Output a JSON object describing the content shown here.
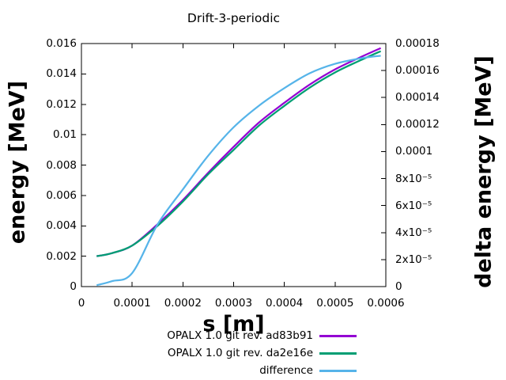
{
  "title": "Drift-3-periodic",
  "axes": {
    "x": {
      "label": "s [m]",
      "tick_labels": [
        "0",
        "0.0001",
        "0.0002",
        "0.0003",
        "0.0004",
        "0.0005",
        "0.0006"
      ],
      "range": [
        0,
        0.0006
      ]
    },
    "y": {
      "label": "energy [MeV]",
      "tick_labels": [
        "0",
        "0.002",
        "0.004",
        "0.006",
        "0.008",
        "0.01",
        "0.012",
        "0.014",
        "0.016"
      ],
      "range": [
        0,
        0.016
      ]
    },
    "y2": {
      "label": "delta energy [MeV]",
      "tick_labels": [
        "0",
        "2x10⁻⁵",
        "4x10⁻⁵",
        "6x10⁻⁵",
        "8x10⁻⁵",
        "0.0001",
        "0.00012",
        "0.00014",
        "0.00016",
        "0.00018"
      ],
      "range": [
        0,
        0.00018
      ]
    }
  },
  "legend": [
    {
      "label": "OPALX 1.0 git rev. ad83b91",
      "color": "#9400d3"
    },
    {
      "label": "OPALX 1.0 git rev. da2e16e",
      "color": "#009e73"
    },
    {
      "label": "difference",
      "color": "#56b4e9"
    }
  ],
  "colors": {
    "background": "#ffffff",
    "axis": "#000000",
    "text": "#000000"
  },
  "chart_data": {
    "type": "line",
    "title": "Drift-3-periodic",
    "xlabel": "s [m]",
    "ylabel": "energy [MeV]",
    "y2label": "delta energy [MeV]",
    "xlim": [
      0,
      0.0006
    ],
    "ylim": [
      0,
      0.016
    ],
    "y2lim": [
      0,
      0.00018
    ],
    "grid": false,
    "legend_position": "below-plot-right",
    "x": [
      3e-05,
      6e-05,
      0.0001,
      0.00015,
      0.0002,
      0.00025,
      0.0003,
      0.00035,
      0.0004,
      0.00045,
      0.0005,
      0.00055,
      0.00059
    ],
    "series": [
      {
        "name": "OPALX 1.0 git rev. ad83b91",
        "axis": "y",
        "color": "#9400d3",
        "values": [
          0.002,
          0.0022,
          0.0027,
          0.0041,
          0.0057,
          0.0075,
          0.0092,
          0.0108,
          0.0121,
          0.0133,
          0.0143,
          0.0151,
          0.0157
        ]
      },
      {
        "name": "OPALX 1.0 git rev. da2e16e",
        "axis": "y",
        "color": "#009e73",
        "values": [
          0.002,
          0.0022,
          0.0027,
          0.004,
          0.0056,
          0.0074,
          0.009,
          0.0106,
          0.0119,
          0.0131,
          0.0141,
          0.0149,
          0.0155
        ]
      },
      {
        "name": "difference",
        "axis": "y2",
        "color": "#56b4e9",
        "values": [
          1e-06,
          4e-06,
          1e-05,
          4.6e-05,
          7.2e-05,
          9.7e-05,
          0.000118,
          0.000134,
          0.000147,
          0.000158,
          0.000165,
          0.000169,
          0.000171
        ]
      }
    ]
  }
}
